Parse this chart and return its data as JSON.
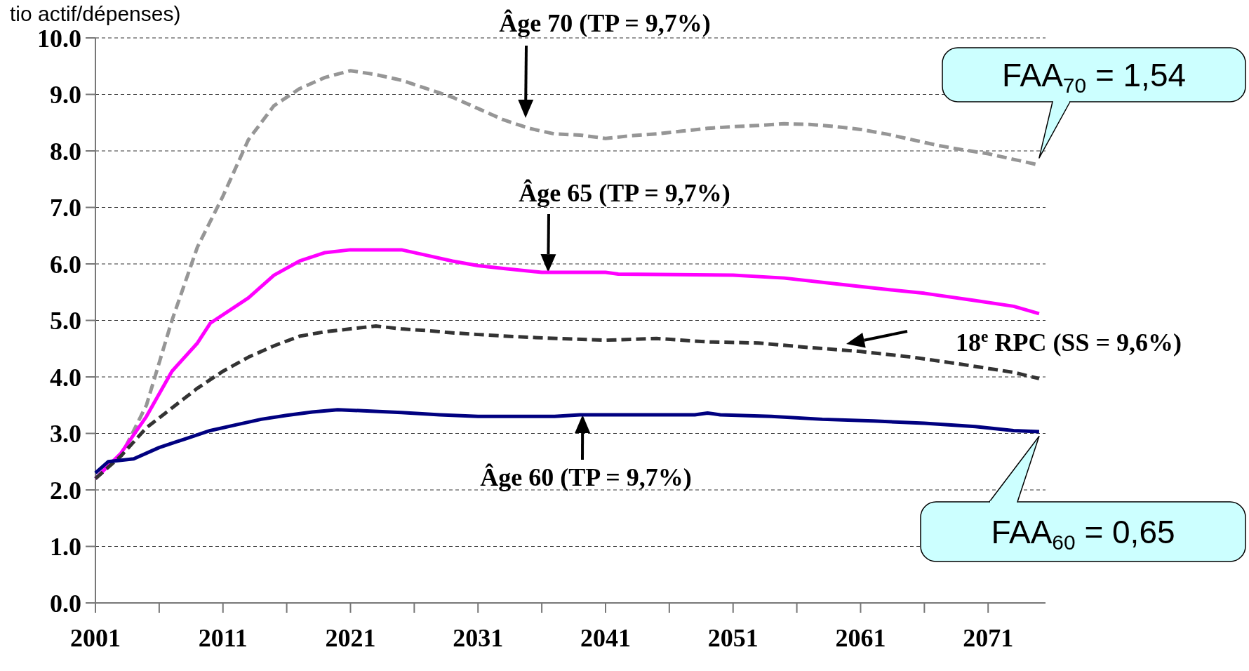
{
  "chart_data": {
    "type": "line",
    "ylabel": "tio actif/dépenses)",
    "xlim": [
      2001,
      2075.5
    ],
    "xticks": [
      2001,
      {
        "value": 2006,
        "label": null
      },
      2011,
      {
        "value": 2016,
        "label": null
      },
      2021,
      {
        "value": 2026,
        "label": null
      },
      2031,
      {
        "value": 2036,
        "label": null
      },
      2041,
      {
        "value": 2046,
        "label": null
      },
      2051,
      {
        "value": 2056,
        "label": null
      },
      2061,
      {
        "value": 2066,
        "label": null
      },
      2071
    ],
    "ylim": [
      0,
      10
    ],
    "yticks": [
      {
        "value": 0,
        "label": "0.0"
      },
      {
        "value": 1,
        "label": "1.0"
      },
      {
        "value": 2,
        "label": "2.0"
      },
      {
        "value": 3,
        "label": "3.0"
      },
      {
        "value": 4,
        "label": "4.0"
      },
      {
        "value": 5,
        "label": "5.0"
      },
      {
        "value": 6,
        "label": "6.0"
      },
      {
        "value": 7,
        "label": "7.0"
      },
      {
        "value": 8,
        "label": "8.0"
      },
      {
        "value": 9,
        "label": "9.0"
      },
      {
        "value": 10,
        "label": "10.0"
      }
    ],
    "grid": "y",
    "marker": "none",
    "series": [
      {
        "color": "#969696",
        "line_style": "dashed",
        "x": [
          2001,
          2003,
          2005,
          2007,
          2009,
          2011,
          2013,
          2015,
          2017,
          2019,
          2021,
          2023,
          2025,
          2027,
          2029,
          2031,
          2033,
          2035,
          2037,
          2039,
          2041,
          2043,
          2045,
          2047,
          2049,
          2051,
          2053,
          2055,
          2057,
          2059,
          2061,
          2063,
          2065,
          2067,
          2069,
          2071,
          2073,
          2075
        ],
        "values": [
          2.2,
          2.6,
          3.5,
          5.0,
          6.3,
          7.2,
          8.2,
          8.8,
          9.1,
          9.3,
          9.42,
          9.35,
          9.25,
          9.1,
          8.95,
          8.75,
          8.55,
          8.4,
          8.3,
          8.28,
          8.22,
          8.27,
          8.3,
          8.35,
          8.4,
          8.43,
          8.45,
          8.48,
          8.47,
          8.43,
          8.38,
          8.3,
          8.2,
          8.1,
          8.02,
          7.95,
          7.85,
          7.75
        ]
      },
      {
        "color": "#ff00ff",
        "line_style": "solid",
        "x": [
          2001,
          2003,
          2005,
          2007,
          2009,
          2010,
          2013,
          2015,
          2017,
          2019,
          2021,
          2025,
          2027,
          2029,
          2031,
          2033,
          2036,
          2041,
          2042,
          2051,
          2055,
          2059,
          2063,
          2066,
          2070,
          2073,
          2075
        ],
        "values": [
          2.2,
          2.65,
          3.3,
          4.1,
          4.6,
          4.95,
          5.4,
          5.8,
          6.05,
          6.2,
          6.25,
          6.25,
          6.15,
          6.05,
          5.97,
          5.92,
          5.85,
          5.85,
          5.82,
          5.8,
          5.75,
          5.65,
          5.55,
          5.48,
          5.35,
          5.25,
          5.12
        ]
      },
      {
        "color": "#333333",
        "line_style": "dashed",
        "x": [
          2001,
          2003,
          2005,
          2007,
          2009,
          2011,
          2013,
          2015,
          2017,
          2019,
          2021,
          2023,
          2025,
          2027,
          2029,
          2031,
          2035,
          2041,
          2045,
          2049,
          2053,
          2057,
          2061,
          2065,
          2069,
          2073,
          2075
        ],
        "values": [
          2.2,
          2.6,
          3.1,
          3.45,
          3.8,
          4.1,
          4.35,
          4.55,
          4.72,
          4.8,
          4.85,
          4.9,
          4.85,
          4.82,
          4.78,
          4.75,
          4.7,
          4.65,
          4.68,
          4.62,
          4.6,
          4.52,
          4.45,
          4.35,
          4.22,
          4.08,
          3.97
        ]
      },
      {
        "color": "#000080",
        "line_style": "solid",
        "x": [
          2001,
          2002,
          2004,
          2006,
          2008,
          2010,
          2012,
          2014,
          2016,
          2018,
          2020,
          2022,
          2025,
          2028,
          2031,
          2037,
          2039,
          2048,
          2049,
          2050,
          2054,
          2058,
          2062,
          2066,
          2070,
          2073,
          2075
        ],
        "values": [
          2.3,
          2.5,
          2.55,
          2.75,
          2.9,
          3.05,
          3.15,
          3.25,
          3.32,
          3.38,
          3.42,
          3.4,
          3.37,
          3.33,
          3.3,
          3.3,
          3.33,
          3.33,
          3.36,
          3.33,
          3.3,
          3.25,
          3.22,
          3.18,
          3.12,
          3.05,
          3.03
        ]
      }
    ],
    "annotations": [
      "Âge 70 (TP = 9,7%)",
      {
        "text": "Âge 65 (TP = 9,7%)",
        "x": 2036.5,
        "y": 5.85
      },
      {
        "text": "Âge 60 (TP = 9,7%)",
        "x": 2039.2,
        "y": 3.33
      },
      "18$^{e}$ RPC (SS = 9,6%)",
      {
        "text": "FAA$_{70}$ = 1,54",
        "x": 2075,
        "y": 7.8
      },
      {
        "text": "FAA$_{60}$ = 0,65",
        "x": 2075,
        "y": 3.0
      }
    ]
  }
}
